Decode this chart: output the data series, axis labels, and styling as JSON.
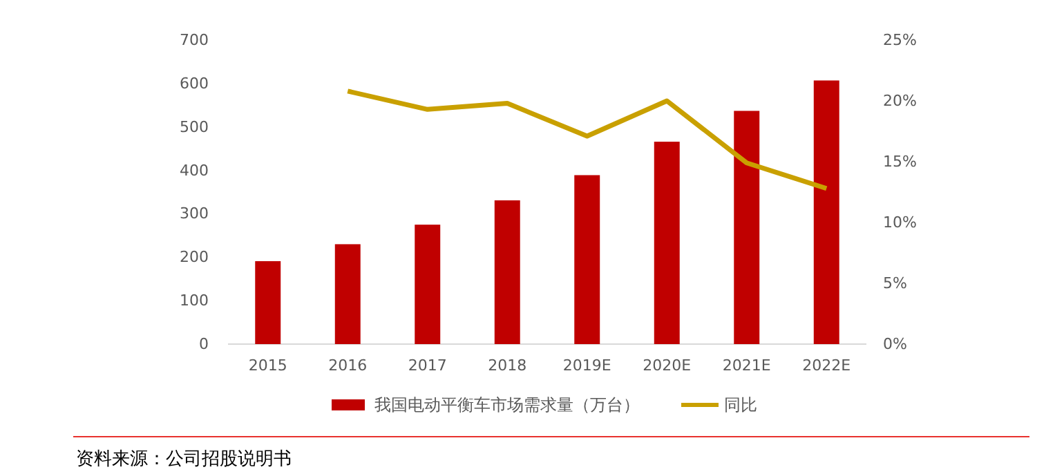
{
  "chart_data": {
    "type": "bar",
    "categories": [
      "2015",
      "2016",
      "2017",
      "2018",
      "2019E",
      "2020E",
      "2021E",
      "2022E"
    ],
    "series": [
      {
        "name": "我国电动平衡车市场需求量（万台）",
        "color": "#c00000",
        "values": [
          191,
          230,
          275,
          331,
          389,
          466,
          537,
          607
        ]
      },
      {
        "name": "同比",
        "type": "line",
        "axis": "y2",
        "color": "#c9a000",
        "values": [
          null,
          20.8,
          19.3,
          19.8,
          17.1,
          20.0,
          14.9,
          12.8
        ]
      }
    ],
    "ylim": [
      0,
      700
    ],
    "yticks": [
      0,
      100,
      200,
      300,
      400,
      500,
      600,
      700
    ],
    "y2lim": [
      0,
      25
    ],
    "y2ticks": [
      {
        "value": 0,
        "label": "0%"
      },
      {
        "value": 5,
        "label": "5%"
      },
      {
        "value": 10,
        "label": "10%"
      },
      {
        "value": 15,
        "label": "15%"
      },
      {
        "value": 20,
        "label": "20%"
      },
      {
        "value": 25,
        "label": "25%"
      }
    ],
    "legend": "bottom",
    "marker": "none",
    "annotations": [
      "资料来源：公司招股说明书"
    ]
  }
}
